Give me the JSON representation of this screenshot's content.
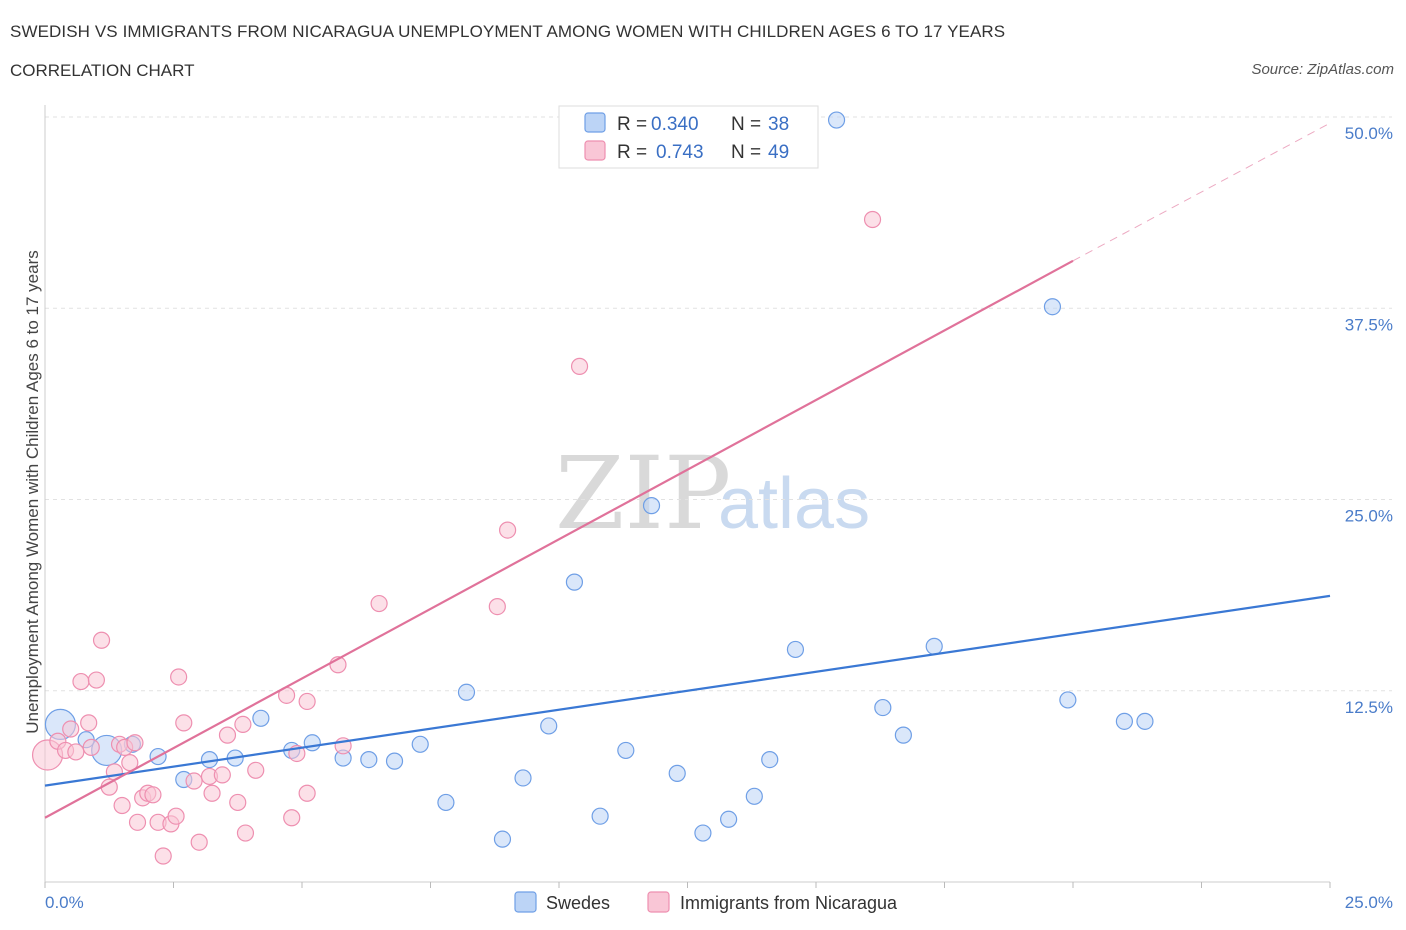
{
  "header": {
    "title": "SWEDISH VS IMMIGRANTS FROM NICARAGUA UNEMPLOYMENT AMONG WOMEN WITH CHILDREN AGES 6 TO 17 YEARS",
    "subtitle": "CORRELATION CHART",
    "source": "Source: ZipAtlas.com"
  },
  "watermark": {
    "zip": "ZIP",
    "atlas": "atlas"
  },
  "legend_box": {
    "rows": [
      {
        "r_label": "R =",
        "r_value": "0.340",
        "n_label": "N =",
        "n_value": "38",
        "color": "#6f9fe6"
      },
      {
        "r_label": "R =",
        "r_value": "0.743",
        "n_label": "N =",
        "n_value": "49",
        "color": "#ee8fb0"
      }
    ]
  },
  "bottom_legend": [
    {
      "label": "Swedes",
      "color": "#6f9fe6"
    },
    {
      "label": "Immigrants from Nicaragua",
      "color": "#ee8fb0"
    }
  ],
  "chart_data": {
    "type": "scatter",
    "title": "SWEDISH VS IMMIGRANTS FROM NICARAGUA UNEMPLOYMENT AMONG WOMEN WITH CHILDREN AGES 6 TO 17 YEARS",
    "xlabel": "",
    "ylabel": "Unemployment Among Women with Children Ages 6 to 17 years",
    "xlim": [
      0,
      25
    ],
    "ylim": [
      0,
      50
    ],
    "x_tick_labels": [
      "0.0%",
      "25.0%"
    ],
    "y_ticks": [
      12.5,
      25.0,
      37.5,
      50.0
    ],
    "y_tick_labels": [
      "12.5%",
      "25.0%",
      "37.5%",
      "50.0%"
    ],
    "grid": true,
    "legend_position": "top-center",
    "series": [
      {
        "name": "Swedes",
        "color": "#6f9fe6",
        "line_color": "#3a78d4",
        "trend": {
          "x": [
            0,
            25
          ],
          "y": [
            6.3,
            18.7
          ]
        },
        "points": [
          {
            "x": 0.3,
            "y": 10.3,
            "big": true
          },
          {
            "x": 1.2,
            "y": 8.6,
            "big": true
          },
          {
            "x": 0.8,
            "y": 9.3
          },
          {
            "x": 1.7,
            "y": 9.0
          },
          {
            "x": 2.2,
            "y": 8.2
          },
          {
            "x": 2.7,
            "y": 6.7
          },
          {
            "x": 3.2,
            "y": 8.0
          },
          {
            "x": 3.7,
            "y": 8.1
          },
          {
            "x": 4.2,
            "y": 10.7
          },
          {
            "x": 4.8,
            "y": 8.6
          },
          {
            "x": 5.2,
            "y": 9.1
          },
          {
            "x": 5.8,
            "y": 8.1
          },
          {
            "x": 6.3,
            "y": 8.0
          },
          {
            "x": 6.8,
            "y": 7.9
          },
          {
            "x": 7.3,
            "y": 9.0
          },
          {
            "x": 7.8,
            "y": 5.2
          },
          {
            "x": 8.2,
            "y": 12.4
          },
          {
            "x": 8.9,
            "y": 2.8
          },
          {
            "x": 9.3,
            "y": 6.8
          },
          {
            "x": 9.8,
            "y": 10.2
          },
          {
            "x": 10.3,
            "y": 19.6
          },
          {
            "x": 10.8,
            "y": 4.3
          },
          {
            "x": 11.3,
            "y": 8.6
          },
          {
            "x": 11.8,
            "y": 24.6
          },
          {
            "x": 12.3,
            "y": 7.1
          },
          {
            "x": 12.8,
            "y": 3.2
          },
          {
            "x": 13.3,
            "y": 4.1
          },
          {
            "x": 13.8,
            "y": 5.6
          },
          {
            "x": 14.1,
            "y": 8.0
          },
          {
            "x": 14.6,
            "y": 15.2
          },
          {
            "x": 15.4,
            "y": 49.8
          },
          {
            "x": 16.3,
            "y": 11.4
          },
          {
            "x": 16.7,
            "y": 9.6
          },
          {
            "x": 17.3,
            "y": 15.4
          },
          {
            "x": 19.6,
            "y": 37.6
          },
          {
            "x": 19.9,
            "y": 11.9
          },
          {
            "x": 21.0,
            "y": 10.5
          },
          {
            "x": 21.4,
            "y": 10.5
          }
        ]
      },
      {
        "name": "Immigrants from Nicaragua",
        "color": "#ee8fb0",
        "line_color": "#e0729a",
        "trend": {
          "x": [
            0,
            20
          ],
          "y": [
            4.2,
            40.6
          ]
        },
        "trend_extension": {
          "x": [
            20,
            25
          ],
          "y": [
            40.6,
            49.6
          ]
        },
        "points": [
          {
            "x": 0.05,
            "y": 8.3,
            "big": true
          },
          {
            "x": 0.25,
            "y": 9.2
          },
          {
            "x": 0.4,
            "y": 8.6
          },
          {
            "x": 0.5,
            "y": 10.0
          },
          {
            "x": 0.7,
            "y": 13.1
          },
          {
            "x": 0.85,
            "y": 10.4
          },
          {
            "x": 1.0,
            "y": 13.2
          },
          {
            "x": 1.1,
            "y": 15.8
          },
          {
            "x": 1.25,
            "y": 6.2
          },
          {
            "x": 1.35,
            "y": 7.2
          },
          {
            "x": 1.45,
            "y": 9.0
          },
          {
            "x": 1.55,
            "y": 8.8
          },
          {
            "x": 1.65,
            "y": 7.8
          },
          {
            "x": 1.75,
            "y": 9.1
          },
          {
            "x": 1.8,
            "y": 3.9
          },
          {
            "x": 1.9,
            "y": 5.5
          },
          {
            "x": 2.0,
            "y": 5.8
          },
          {
            "x": 2.1,
            "y": 5.7
          },
          {
            "x": 2.2,
            "y": 3.9
          },
          {
            "x": 2.3,
            "y": 1.7
          },
          {
            "x": 2.45,
            "y": 3.8
          },
          {
            "x": 2.55,
            "y": 4.3
          },
          {
            "x": 2.6,
            "y": 13.4
          },
          {
            "x": 2.7,
            "y": 10.4
          },
          {
            "x": 3.0,
            "y": 2.6
          },
          {
            "x": 3.2,
            "y": 6.9
          },
          {
            "x": 3.25,
            "y": 5.8
          },
          {
            "x": 3.45,
            "y": 7.0
          },
          {
            "x": 3.55,
            "y": 9.6
          },
          {
            "x": 3.75,
            "y": 5.2
          },
          {
            "x": 3.85,
            "y": 10.3
          },
          {
            "x": 3.9,
            "y": 3.2
          },
          {
            "x": 4.1,
            "y": 7.3
          },
          {
            "x": 4.7,
            "y": 12.2
          },
          {
            "x": 4.8,
            "y": 4.2
          },
          {
            "x": 4.9,
            "y": 8.4
          },
          {
            "x": 5.1,
            "y": 11.8
          },
          {
            "x": 5.1,
            "y": 5.8
          },
          {
            "x": 5.7,
            "y": 14.2
          },
          {
            "x": 5.8,
            "y": 8.9
          },
          {
            "x": 6.5,
            "y": 18.2
          },
          {
            "x": 9.0,
            "y": 23.0
          },
          {
            "x": 8.8,
            "y": 18.0
          },
          {
            "x": 10.4,
            "y": 33.7
          },
          {
            "x": 16.1,
            "y": 43.3
          },
          {
            "x": 0.6,
            "y": 8.5
          },
          {
            "x": 1.5,
            "y": 5.0
          },
          {
            "x": 0.9,
            "y": 8.8
          },
          {
            "x": 2.9,
            "y": 6.6
          }
        ]
      }
    ]
  }
}
